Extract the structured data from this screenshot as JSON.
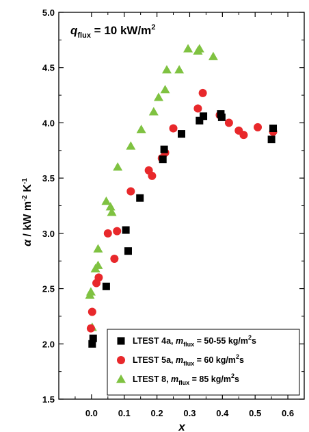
{
  "chart_data": {
    "type": "scatter",
    "annotation": {
      "prefix": "q",
      "subscript": "flux",
      "value": " = 10 kW/m",
      "sup": "2"
    },
    "xlabel": "x",
    "ylabel": {
      "alpha": "α",
      "text": " / kW m",
      "sup1": "-2",
      "text2": " K",
      "sup2": "-1"
    },
    "xlim": [
      -0.1,
      0.65
    ],
    "ylim": [
      1.5,
      5.0
    ],
    "xticks": [
      "0.0",
      "0.1",
      "0.2",
      "0.3",
      "0.4",
      "0.5",
      "0.6"
    ],
    "xtick_values": [
      0.0,
      0.1,
      0.2,
      0.3,
      0.4,
      0.5,
      0.6
    ],
    "yticks": [
      "1.5",
      "2.0",
      "2.5",
      "3.0",
      "3.5",
      "4.0",
      "4.5",
      "5.0"
    ],
    "ytick_values": [
      1.5,
      2.0,
      2.5,
      3.0,
      3.5,
      4.0,
      4.5,
      5.0
    ],
    "legend_position": "bottom-right",
    "series": [
      {
        "name": "LTEST 4a",
        "legend": {
          "prefix": "LTEST 4a, ",
          "m": "m",
          "sub": "flux",
          "rest": " = 50-55 kg/m",
          "sup": "2",
          "tail": "s"
        },
        "marker": "square",
        "color": "#000000",
        "points": [
          [
            0.002,
            2.0
          ],
          [
            0.005,
            2.05
          ],
          [
            0.045,
            2.52
          ],
          [
            0.105,
            3.03
          ],
          [
            0.112,
            2.84
          ],
          [
            0.148,
            3.32
          ],
          [
            0.218,
            3.67
          ],
          [
            0.222,
            3.76
          ],
          [
            0.275,
            3.9
          ],
          [
            0.33,
            4.02
          ],
          [
            0.342,
            4.06
          ],
          [
            0.395,
            4.08
          ],
          [
            0.398,
            4.05
          ],
          [
            0.55,
            3.85
          ],
          [
            0.555,
            3.95
          ]
        ]
      },
      {
        "name": "LTEST 5a",
        "legend": {
          "prefix": "LTEST 5a, ",
          "m": "m",
          "sub": "flux",
          "rest": " = 60 kg/m",
          "sup": "2",
          "tail": "s"
        },
        "marker": "circle",
        "color": "#e8282b",
        "points": [
          [
            -0.002,
            2.14
          ],
          [
            0.002,
            2.29
          ],
          [
            0.015,
            2.55
          ],
          [
            0.022,
            2.6
          ],
          [
            0.05,
            3.0
          ],
          [
            0.07,
            2.77
          ],
          [
            0.078,
            3.02
          ],
          [
            0.12,
            3.38
          ],
          [
            0.175,
            3.57
          ],
          [
            0.185,
            3.52
          ],
          [
            0.215,
            3.68
          ],
          [
            0.225,
            3.73
          ],
          [
            0.25,
            3.95
          ],
          [
            0.325,
            4.13
          ],
          [
            0.34,
            4.27
          ],
          [
            0.392,
            4.07
          ],
          [
            0.42,
            4.0
          ],
          [
            0.45,
            3.93
          ],
          [
            0.465,
            3.89
          ],
          [
            0.508,
            3.96
          ],
          [
            0.555,
            3.92
          ]
        ]
      },
      {
        "name": "LTEST 8",
        "legend": {
          "prefix": "LTEST 8, ",
          "m": "m",
          "sub": "flux",
          "rest": " = 85 kg/m",
          "sup": "2",
          "tail": "s"
        },
        "marker": "triangle",
        "color": "#7fc241",
        "points": [
          [
            -0.005,
            2.44
          ],
          [
            -0.002,
            2.47
          ],
          [
            0.002,
            2.15
          ],
          [
            0.012,
            2.68
          ],
          [
            0.02,
            2.71
          ],
          [
            0.02,
            2.86
          ],
          [
            0.045,
            3.29
          ],
          [
            0.058,
            3.24
          ],
          [
            0.062,
            3.19
          ],
          [
            0.08,
            3.6
          ],
          [
            0.12,
            3.79
          ],
          [
            0.152,
            3.94
          ],
          [
            0.19,
            4.1
          ],
          [
            0.205,
            4.23
          ],
          [
            0.225,
            4.3
          ],
          [
            0.23,
            4.48
          ],
          [
            0.268,
            4.48
          ],
          [
            0.295,
            4.67
          ],
          [
            0.325,
            4.65
          ],
          [
            0.33,
            4.67
          ],
          [
            0.372,
            4.6
          ]
        ]
      }
    ]
  }
}
